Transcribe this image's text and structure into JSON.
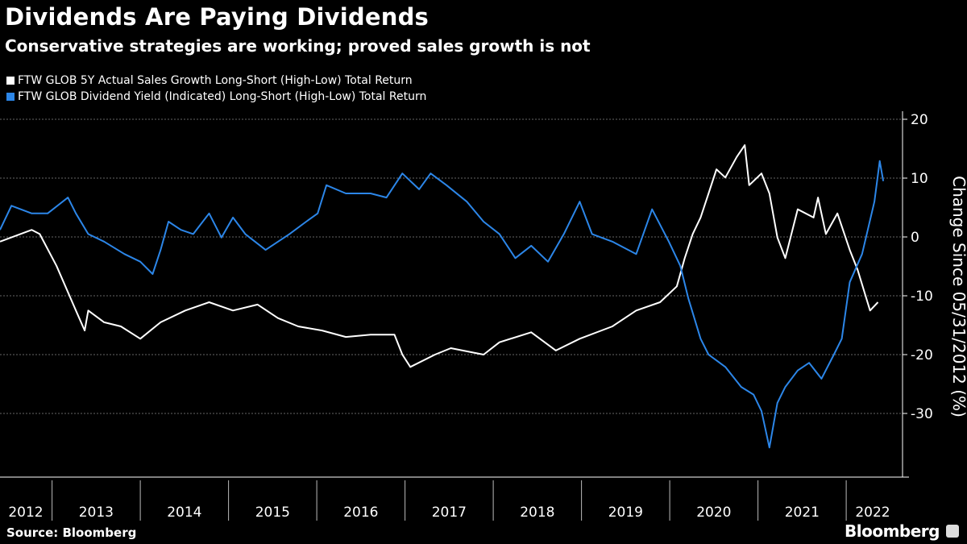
{
  "title": "Dividends Are Paying Dividends",
  "subtitle": "Conservative strategies are working; proved sales growth is not",
  "source": "Source: Bloomberg",
  "brand": "Bloomberg",
  "colors": {
    "series1": "#ffffff",
    "series2": "#2c86e8",
    "grid": "#666666"
  },
  "chart_data": {
    "type": "line",
    "title": "Dividends Are Paying Dividends",
    "ylabel": "Change Since 05/31/2012 (%)",
    "xlabel": "",
    "ylim": [
      -38,
      22
    ],
    "xlim": [
      2012.41,
      2022.6
    ],
    "yticks": [
      20,
      10,
      0,
      -10,
      -20,
      -30
    ],
    "ytick_labels": [
      "20",
      "10",
      "0",
      "-10",
      "-20",
      "-30"
    ],
    "xtick_labels": [
      "2012",
      "2013",
      "2014",
      "2015",
      "2016",
      "2017",
      "2018",
      "2019",
      "2020",
      "2021",
      "2022"
    ],
    "grid": true,
    "legend_position": "top-left",
    "series": [
      {
        "name": "FTW GLOB 5Y Actual Sales Growth Long-Short (High-Low) Total Return",
        "color": "#ffffff",
        "points": [
          [
            2012.41,
            -0.8
          ],
          [
            2012.77,
            1.2
          ],
          [
            2012.86,
            0.5
          ],
          [
            2013.05,
            -4.9
          ],
          [
            2013.27,
            -12.5
          ],
          [
            2013.37,
            -15.9
          ],
          [
            2013.41,
            -12.5
          ],
          [
            2013.59,
            -14.5
          ],
          [
            2013.78,
            -15.2
          ],
          [
            2014.0,
            -17.3
          ],
          [
            2014.23,
            -14.5
          ],
          [
            2014.51,
            -12.5
          ],
          [
            2014.78,
            -11.1
          ],
          [
            2015.05,
            -12.5
          ],
          [
            2015.33,
            -11.5
          ],
          [
            2015.56,
            -13.8
          ],
          [
            2015.79,
            -15.2
          ],
          [
            2016.06,
            -15.9
          ],
          [
            2016.33,
            -17.0
          ],
          [
            2016.61,
            -16.6
          ],
          [
            2016.88,
            -16.6
          ],
          [
            2016.97,
            -20.0
          ],
          [
            2017.06,
            -22.1
          ],
          [
            2017.34,
            -20.0
          ],
          [
            2017.52,
            -18.9
          ],
          [
            2017.89,
            -20.0
          ],
          [
            2018.07,
            -17.9
          ],
          [
            2018.43,
            -16.2
          ],
          [
            2018.71,
            -19.3
          ],
          [
            2018.98,
            -17.3
          ],
          [
            2019.35,
            -15.2
          ],
          [
            2019.62,
            -12.5
          ],
          [
            2019.89,
            -11.1
          ],
          [
            2020.08,
            -8.4
          ],
          [
            2020.17,
            -3.6
          ],
          [
            2020.26,
            0.5
          ],
          [
            2020.35,
            3.3
          ],
          [
            2020.44,
            7.4
          ],
          [
            2020.53,
            11.5
          ],
          [
            2020.63,
            10.1
          ],
          [
            2020.76,
            13.6
          ],
          [
            2020.85,
            15.6
          ],
          [
            2020.9,
            8.8
          ],
          [
            2021.04,
            10.8
          ],
          [
            2021.13,
            7.4
          ],
          [
            2021.22,
            -0.1
          ],
          [
            2021.31,
            -3.6
          ],
          [
            2021.45,
            4.7
          ],
          [
            2021.63,
            3.3
          ],
          [
            2021.68,
            6.7
          ],
          [
            2021.77,
            0.5
          ],
          [
            2021.9,
            4.0
          ],
          [
            2022.04,
            -2.2
          ],
          [
            2022.13,
            -5.6
          ],
          [
            2022.27,
            -12.5
          ],
          [
            2022.36,
            -11.1
          ]
        ]
      },
      {
        "name": "FTW GLOB Dividend Yield (Indicated) Long-Short (High-Low) Total Return",
        "color": "#2c86e8",
        "points": [
          [
            2012.41,
            1.2
          ],
          [
            2012.54,
            5.3
          ],
          [
            2012.77,
            4.0
          ],
          [
            2012.95,
            4.0
          ],
          [
            2013.18,
            6.7
          ],
          [
            2013.27,
            4.0
          ],
          [
            2013.41,
            0.5
          ],
          [
            2013.59,
            -0.8
          ],
          [
            2013.82,
            -2.9
          ],
          [
            2014.0,
            -4.2
          ],
          [
            2014.14,
            -6.3
          ],
          [
            2014.23,
            -2.2
          ],
          [
            2014.32,
            2.6
          ],
          [
            2014.46,
            1.2
          ],
          [
            2014.6,
            0.5
          ],
          [
            2014.78,
            4.0
          ],
          [
            2014.92,
            -0.1
          ],
          [
            2015.05,
            3.3
          ],
          [
            2015.19,
            0.5
          ],
          [
            2015.42,
            -2.2
          ],
          [
            2015.69,
            0.5
          ],
          [
            2015.88,
            2.6
          ],
          [
            2016.01,
            4.0
          ],
          [
            2016.11,
            8.8
          ],
          [
            2016.33,
            7.4
          ],
          [
            2016.61,
            7.4
          ],
          [
            2016.79,
            6.7
          ],
          [
            2016.97,
            10.8
          ],
          [
            2017.16,
            8.1
          ],
          [
            2017.29,
            10.8
          ],
          [
            2017.47,
            8.8
          ],
          [
            2017.7,
            6.0
          ],
          [
            2017.89,
            2.6
          ],
          [
            2018.07,
            0.5
          ],
          [
            2018.25,
            -3.6
          ],
          [
            2018.43,
            -1.5
          ],
          [
            2018.62,
            -4.2
          ],
          [
            2018.8,
            0.5
          ],
          [
            2018.98,
            6.0
          ],
          [
            2019.12,
            0.5
          ],
          [
            2019.35,
            -0.8
          ],
          [
            2019.62,
            -2.9
          ],
          [
            2019.8,
            4.7
          ],
          [
            2019.99,
            -0.8
          ],
          [
            2020.12,
            -4.9
          ],
          [
            2020.21,
            -10.4
          ],
          [
            2020.35,
            -17.3
          ],
          [
            2020.44,
            -20.0
          ],
          [
            2020.63,
            -22.1
          ],
          [
            2020.81,
            -25.5
          ],
          [
            2020.95,
            -26.8
          ],
          [
            2021.04,
            -29.6
          ],
          [
            2021.13,
            -35.8
          ],
          [
            2021.22,
            -28.2
          ],
          [
            2021.31,
            -25.5
          ],
          [
            2021.45,
            -22.7
          ],
          [
            2021.58,
            -21.4
          ],
          [
            2021.72,
            -24.1
          ],
          [
            2021.86,
            -20.0
          ],
          [
            2021.95,
            -17.3
          ],
          [
            2022.04,
            -7.7
          ],
          [
            2022.18,
            -2.9
          ],
          [
            2022.32,
            6.0
          ],
          [
            2022.38,
            12.9
          ],
          [
            2022.42,
            9.5
          ]
        ]
      }
    ]
  }
}
